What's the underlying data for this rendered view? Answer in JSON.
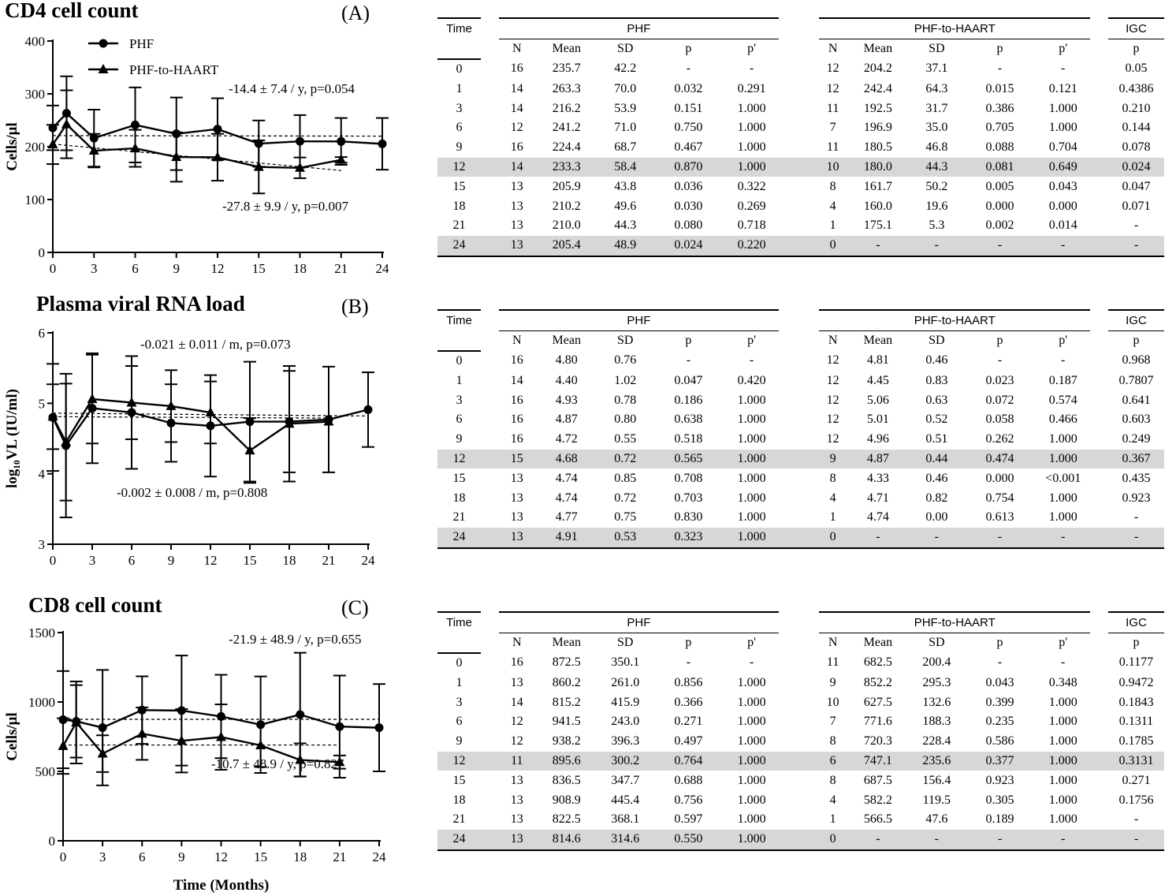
{
  "chart_data": [
    {
      "type": "line",
      "title": "CD4 cell count",
      "panel_label": "(A)",
      "ylabel": "Cells/μl",
      "xlabel": "",
      "ylim": [
        0,
        400
      ],
      "yticks": [
        0,
        100,
        200,
        300,
        400
      ],
      "xlim": [
        0,
        24
      ],
      "xticks": [
        0,
        3,
        6,
        9,
        12,
        15,
        18,
        21,
        24
      ],
      "legend": "top-left",
      "series": [
        {
          "name": "PHF",
          "marker": "circle",
          "x": [
            0,
            1,
            3,
            6,
            9,
            12,
            15,
            18,
            21,
            24
          ],
          "y": [
            235.7,
            263.3,
            216.2,
            241.2,
            224.4,
            233.3,
            205.9,
            210.2,
            210.0,
            205.4
          ],
          "err": [
            42.2,
            70.0,
            53.9,
            71.0,
            68.7,
            58.4,
            43.8,
            49.6,
            44.3,
            48.9
          ]
        },
        {
          "name": "PHF-to-HAART",
          "marker": "triangle",
          "x": [
            0,
            1,
            3,
            6,
            9,
            12,
            15,
            18,
            21
          ],
          "y": [
            204.2,
            242.4,
            192.5,
            196.9,
            180.5,
            180.0,
            161.7,
            160.0,
            175.1
          ],
          "err": [
            37.1,
            64.3,
            31.7,
            35.0,
            46.8,
            44.3,
            50.2,
            19.6,
            5.3
          ]
        }
      ],
      "trends": [
        {
          "x": [
            0,
            24
          ],
          "y": [
            221,
            220
          ]
        },
        {
          "x": [
            0,
            21
          ],
          "y": [
            205,
            155
          ]
        }
      ],
      "annotations": [
        "-14.4 ± 7.4 / y, p=0.054",
        "-27.8 ± 9.9 / y, p=0.007"
      ]
    },
    {
      "type": "line",
      "title": "Plasma viral RNA load",
      "panel_label": "(B)",
      "ylabel": "log₁₀VL (IU/ml)",
      "xlabel": "",
      "ylim": [
        3,
        6
      ],
      "yticks": [
        3,
        4,
        5,
        6
      ],
      "xlim": [
        0,
        24
      ],
      "xticks": [
        0,
        3,
        6,
        9,
        12,
        15,
        18,
        21,
        24
      ],
      "series": [
        {
          "name": "PHF",
          "marker": "circle",
          "x": [
            0,
            1,
            3,
            6,
            9,
            12,
            15,
            18,
            21,
            24
          ],
          "y": [
            4.8,
            4.4,
            4.93,
            4.87,
            4.72,
            4.68,
            4.74,
            4.74,
            4.77,
            4.91
          ],
          "err": [
            0.76,
            1.02,
            0.78,
            0.8,
            0.55,
            0.72,
            0.85,
            0.72,
            0.75,
            0.53
          ]
        },
        {
          "name": "PHF-to-HAART",
          "marker": "triangle",
          "x": [
            0,
            1,
            3,
            6,
            9,
            12,
            15,
            18,
            21
          ],
          "y": [
            4.81,
            4.45,
            5.06,
            5.01,
            4.96,
            4.87,
            4.33,
            4.71,
            4.74
          ],
          "err": [
            0.46,
            0.83,
            0.63,
            0.52,
            0.51,
            0.44,
            0.46,
            0.82,
            0.0
          ]
        }
      ],
      "trends": [
        {
          "x": [
            0,
            24
          ],
          "y": [
            4.86,
            4.82
          ]
        },
        {
          "x": [
            0,
            21
          ],
          "y": [
            4.81,
            4.79
          ]
        }
      ],
      "annotations": [
        "-0.021 ± 0.011 / m, p=0.073",
        "-0.002  ± 0.008 / m, p=0.808"
      ]
    },
    {
      "type": "line",
      "title": "CD8 cell count",
      "panel_label": "(C)",
      "ylabel": "Cells/μl",
      "xlabel": "Time (Months)",
      "ylim": [
        0,
        1500
      ],
      "yticks": [
        0,
        500,
        1000,
        1500
      ],
      "xlim": [
        0,
        24
      ],
      "xticks": [
        0,
        3,
        6,
        9,
        12,
        15,
        18,
        21,
        24
      ],
      "series": [
        {
          "name": "PHF",
          "marker": "circle",
          "x": [
            0,
            1,
            3,
            6,
            9,
            12,
            15,
            18,
            21,
            24
          ],
          "y": [
            872.5,
            860.2,
            815.2,
            941.5,
            938.2,
            895.6,
            836.5,
            908.9,
            822.5,
            814.6
          ],
          "err": [
            350.1,
            261.0,
            415.9,
            243.0,
            396.3,
            300.2,
            347.7,
            445.4,
            368.1,
            314.6
          ]
        },
        {
          "name": "PHF-to-HAART",
          "marker": "triangle",
          "x": [
            0,
            1,
            3,
            6,
            9,
            12,
            15,
            18,
            21
          ],
          "y": [
            682.5,
            852.2,
            627.5,
            771.6,
            720.3,
            747.1,
            687.5,
            582.2,
            566.5
          ],
          "err": [
            200.4,
            295.3,
            132.6,
            188.3,
            228.4,
            235.6,
            156.4,
            119.5,
            47.6
          ]
        }
      ],
      "trends": [
        {
          "x": [
            0,
            24
          ],
          "y": [
            875,
            875
          ]
        },
        {
          "x": [
            0,
            21
          ],
          "y": [
            690,
            690
          ]
        }
      ],
      "annotations": [
        "-21.9 ± 48.9 / y, p=0.655",
        "-10.7 ± 48.9 / y, p=0.827"
      ]
    }
  ],
  "table_headers": {
    "time": "Time",
    "group1": "PHF",
    "group2": "PHF-to-HAART",
    "igc": "IGC",
    "cols1": [
      "N",
      "Mean",
      "SD",
      "p",
      "p'"
    ],
    "cols2": [
      "N",
      "Mean",
      "SD",
      "p",
      "p'"
    ],
    "igc_col": "p"
  },
  "tables": [
    {
      "rows": [
        [
          "0",
          "16",
          "235.7",
          "42.2",
          "-",
          "-",
          "12",
          "204.2",
          "37.1",
          "-",
          "-",
          "0.05"
        ],
        [
          "1",
          "14",
          "263.3",
          "70.0",
          "0.032",
          "0.291",
          "12",
          "242.4",
          "64.3",
          "0.015",
          "0.121",
          "0.4386"
        ],
        [
          "3",
          "14",
          "216.2",
          "53.9",
          "0.151",
          "1.000",
          "11",
          "192.5",
          "31.7",
          "0.386",
          "1.000",
          "0.210"
        ],
        [
          "6",
          "12",
          "241.2",
          "71.0",
          "0.750",
          "1.000",
          "7",
          "196.9",
          "35.0",
          "0.705",
          "1.000",
          "0.144"
        ],
        [
          "9",
          "16",
          "224.4",
          "68.7",
          "0.467",
          "1.000",
          "11",
          "180.5",
          "46.8",
          "0.088",
          "0.704",
          "0.078"
        ],
        [
          "12",
          "14",
          "233.3",
          "58.4",
          "0.870",
          "1.000",
          "10",
          "180.0",
          "44.3",
          "0.081",
          "0.649",
          "0.024"
        ],
        [
          "15",
          "13",
          "205.9",
          "43.8",
          "0.036",
          "0.322",
          "8",
          "161.7",
          "50.2",
          "0.005",
          "0.043",
          "0.047"
        ],
        [
          "18",
          "13",
          "210.2",
          "49.6",
          "0.030",
          "0.269",
          "4",
          "160.0",
          "19.6",
          "0.000",
          "0.000",
          "0.071"
        ],
        [
          "21",
          "13",
          "210.0",
          "44.3",
          "0.080",
          "0.718",
          "1",
          "175.1",
          "5.3",
          "0.002",
          "0.014",
          "-"
        ],
        [
          "24",
          "13",
          "205.4",
          "48.9",
          "0.024",
          "0.220",
          "0",
          "-",
          "-",
          "-",
          "-",
          "-"
        ]
      ]
    },
    {
      "rows": [
        [
          "0",
          "16",
          "4.80",
          "0.76",
          "-",
          "-",
          "12",
          "4.81",
          "0.46",
          "-",
          "-",
          "0.968"
        ],
        [
          "1",
          "14",
          "4.40",
          "1.02",
          "0.047",
          "0.420",
          "12",
          "4.45",
          "0.83",
          "0.023",
          "0.187",
          "0.7807"
        ],
        [
          "3",
          "16",
          "4.93",
          "0.78",
          "0.186",
          "1.000",
          "12",
          "5.06",
          "0.63",
          "0.072",
          "0.574",
          "0.641"
        ],
        [
          "6",
          "16",
          "4.87",
          "0.80",
          "0.638",
          "1.000",
          "12",
          "5.01",
          "0.52",
          "0.058",
          "0.466",
          "0.603"
        ],
        [
          "9",
          "16",
          "4.72",
          "0.55",
          "0.518",
          "1.000",
          "12",
          "4.96",
          "0.51",
          "0.262",
          "1.000",
          "0.249"
        ],
        [
          "12",
          "15",
          "4.68",
          "0.72",
          "0.565",
          "1.000",
          "9",
          "4.87",
          "0.44",
          "0.474",
          "1.000",
          "0.367"
        ],
        [
          "15",
          "13",
          "4.74",
          "0.85",
          "0.708",
          "1.000",
          "8",
          "4.33",
          "0.46",
          "0.000",
          "<0.001",
          "0.435"
        ],
        [
          "18",
          "13",
          "4.74",
          "0.72",
          "0.703",
          "1.000",
          "4",
          "4.71",
          "0.82",
          "0.754",
          "1.000",
          "0.923"
        ],
        [
          "21",
          "13",
          "4.77",
          "0.75",
          "0.830",
          "1.000",
          "1",
          "4.74",
          "0.00",
          "0.613",
          "1.000",
          "-"
        ],
        [
          "24",
          "13",
          "4.91",
          "0.53",
          "0.323",
          "1.000",
          "0",
          "-",
          "-",
          "-",
          "-",
          "-"
        ]
      ]
    },
    {
      "rows": [
        [
          "0",
          "16",
          "872.5",
          "350.1",
          "-",
          "-",
          "11",
          "682.5",
          "200.4",
          "-",
          "-",
          "0.1177"
        ],
        [
          "1",
          "13",
          "860.2",
          "261.0",
          "0.856",
          "1.000",
          "9",
          "852.2",
          "295.3",
          "0.043",
          "0.348",
          "0.9472"
        ],
        [
          "3",
          "14",
          "815.2",
          "415.9",
          "0.366",
          "1.000",
          "10",
          "627.5",
          "132.6",
          "0.399",
          "1.000",
          "0.1843"
        ],
        [
          "6",
          "12",
          "941.5",
          "243.0",
          "0.271",
          "1.000",
          "7",
          "771.6",
          "188.3",
          "0.235",
          "1.000",
          "0.1311"
        ],
        [
          "9",
          "12",
          "938.2",
          "396.3",
          "0.497",
          "1.000",
          "8",
          "720.3",
          "228.4",
          "0.586",
          "1.000",
          "0.1785"
        ],
        [
          "12",
          "11",
          "895.6",
          "300.2",
          "0.764",
          "1.000",
          "6",
          "747.1",
          "235.6",
          "0.377",
          "1.000",
          "0.3131"
        ],
        [
          "15",
          "13",
          "836.5",
          "347.7",
          "0.688",
          "1.000",
          "8",
          "687.5",
          "156.4",
          "0.923",
          "1.000",
          "0.271"
        ],
        [
          "18",
          "13",
          "908.9",
          "445.4",
          "0.756",
          "1.000",
          "4",
          "582.2",
          "119.5",
          "0.305",
          "1.000",
          "0.1756"
        ],
        [
          "21",
          "13",
          "822.5",
          "368.1",
          "0.597",
          "1.000",
          "1",
          "566.5",
          "47.6",
          "0.189",
          "1.000",
          "-"
        ],
        [
          "24",
          "13",
          "814.6",
          "314.6",
          "0.550",
          "1.000",
          "0",
          "-",
          "-",
          "-",
          "-",
          "-"
        ]
      ]
    }
  ]
}
